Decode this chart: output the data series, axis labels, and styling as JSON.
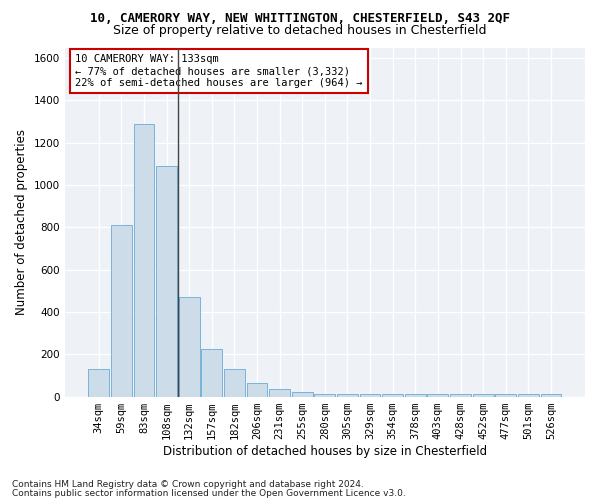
{
  "title_line1": "10, CAMERORY WAY, NEW WHITTINGTON, CHESTERFIELD, S43 2QF",
  "title_line2": "Size of property relative to detached houses in Chesterfield",
  "xlabel": "Distribution of detached houses by size in Chesterfield",
  "ylabel": "Number of detached properties",
  "footnote1": "Contains HM Land Registry data © Crown copyright and database right 2024.",
  "footnote2": "Contains public sector information licensed under the Open Government Licence v3.0.",
  "categories": [
    "34sqm",
    "59sqm",
    "83sqm",
    "108sqm",
    "132sqm",
    "157sqm",
    "182sqm",
    "206sqm",
    "231sqm",
    "255sqm",
    "280sqm",
    "305sqm",
    "329sqm",
    "354sqm",
    "378sqm",
    "403sqm",
    "428sqm",
    "452sqm",
    "477sqm",
    "501sqm",
    "526sqm"
  ],
  "values": [
    130,
    810,
    1290,
    1090,
    470,
    225,
    130,
    65,
    35,
    20,
    10,
    10,
    10,
    10,
    10,
    10,
    10,
    10,
    10,
    10,
    10
  ],
  "bar_color": "#ccdce8",
  "bar_edge_color": "#6aaad4",
  "vline_color": "#444444",
  "annotation_text": "10 CAMERORY WAY: 133sqm\n← 77% of detached houses are smaller (3,332)\n22% of semi-detached houses are larger (964) →",
  "annotation_box_color": "#ffffff",
  "annotation_box_edge": "#cc0000",
  "ylim": [
    0,
    1650
  ],
  "yticks": [
    0,
    200,
    400,
    600,
    800,
    1000,
    1200,
    1400,
    1600
  ],
  "background_color": "#eef2f7",
  "grid_color": "#ffffff",
  "title_fontsize": 9,
  "subtitle_fontsize": 9,
  "axis_label_fontsize": 8.5,
  "tick_fontsize": 7.5,
  "annotation_fontsize": 7.5,
  "footnote_fontsize": 6.5,
  "vline_xindex": 3.5
}
